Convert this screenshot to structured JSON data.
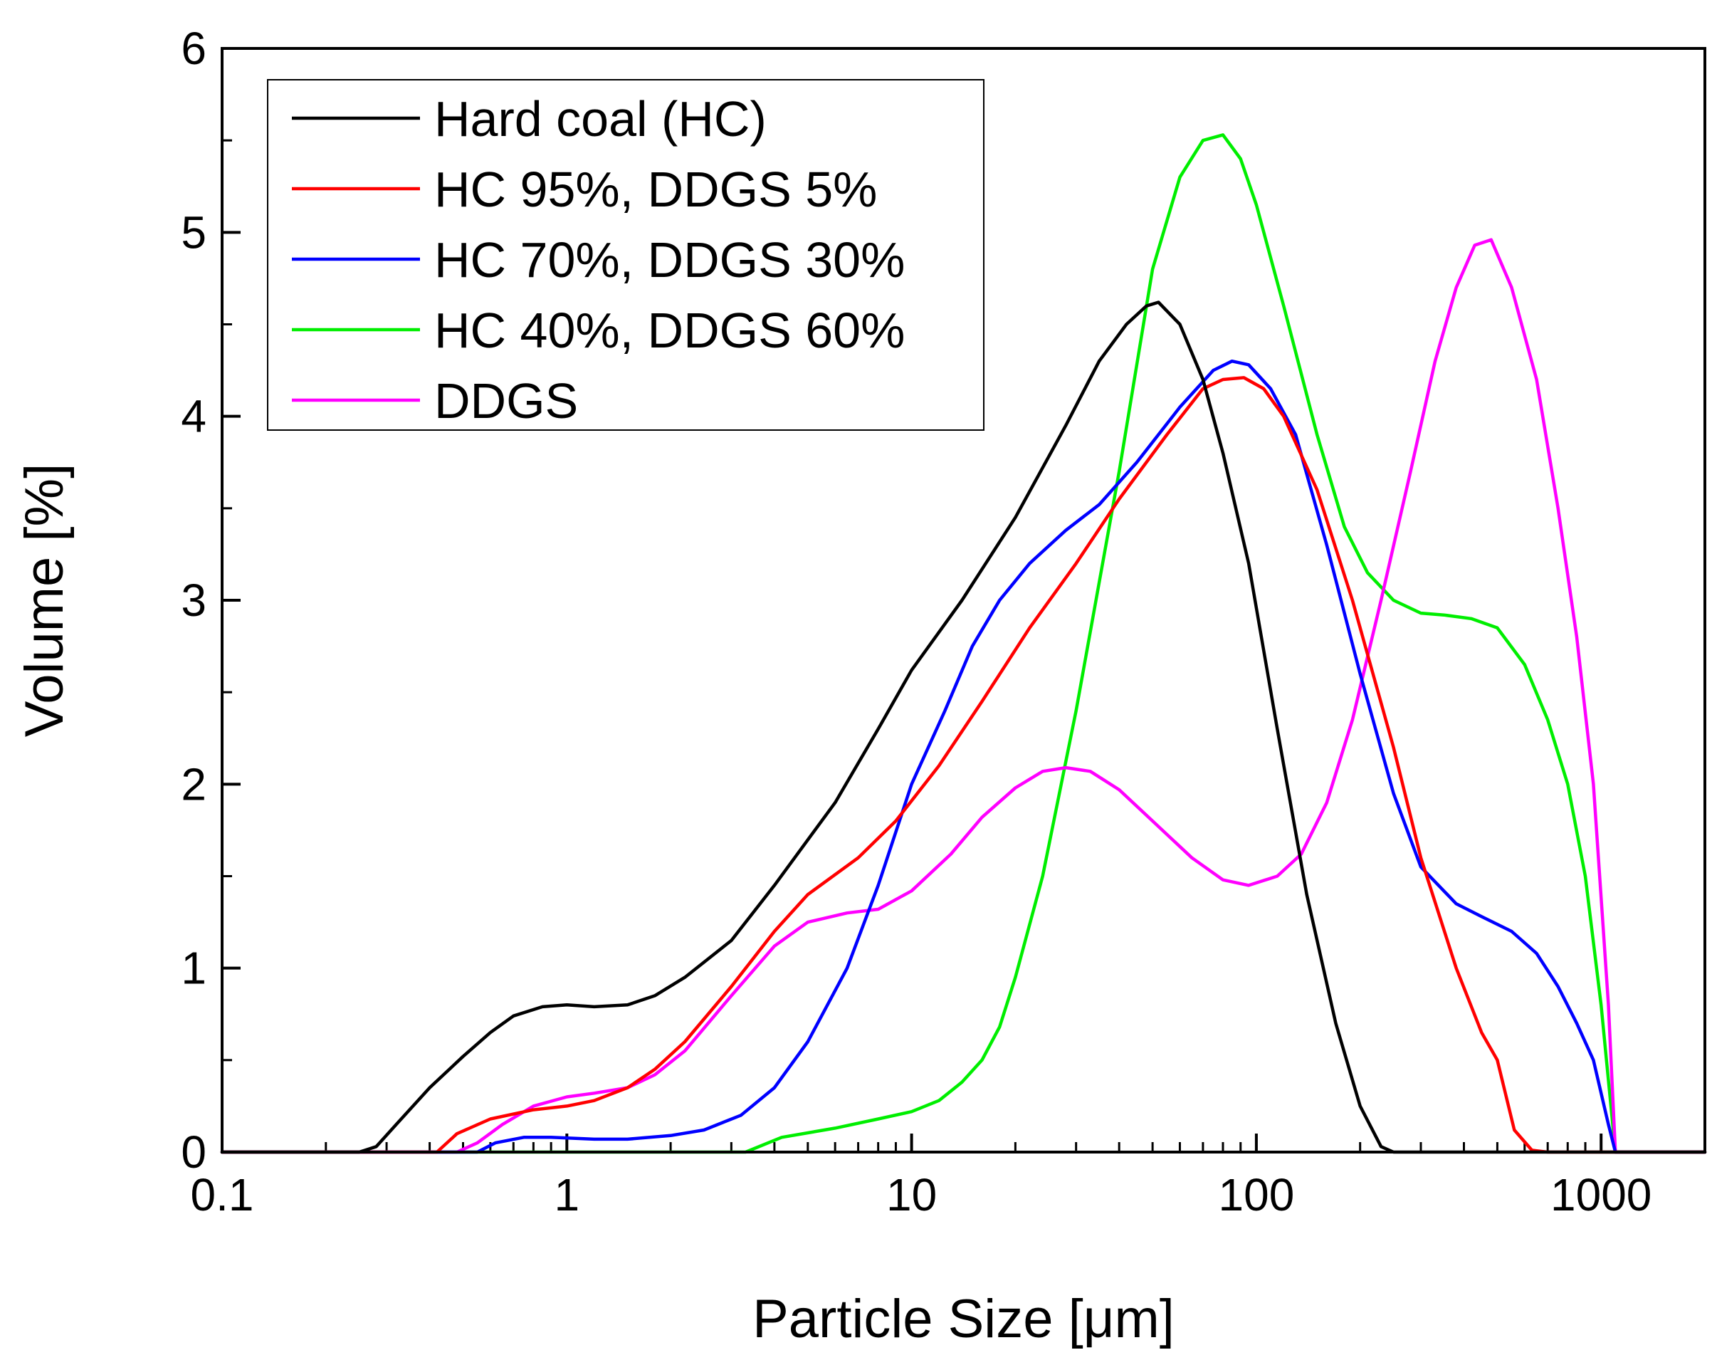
{
  "chart_data": {
    "type": "line",
    "title": "",
    "xlabel": "Particle Size [μm]",
    "ylabel": "Volume [%]",
    "xscale": "log",
    "xlim": [
      0.1,
      2000
    ],
    "ylim": [
      0,
      6
    ],
    "x_ticks": [
      {
        "value": 0.1,
        "label": "0.1"
      },
      {
        "value": 1,
        "label": "1"
      },
      {
        "value": 10,
        "label": "10"
      },
      {
        "value": 100,
        "label": "100"
      },
      {
        "value": 1000,
        "label": "1000"
      }
    ],
    "y_ticks": [
      {
        "value": 0,
        "label": "0"
      },
      {
        "value": 1,
        "label": "1"
      },
      {
        "value": 2,
        "label": "2"
      },
      {
        "value": 3,
        "label": "3"
      },
      {
        "value": 4,
        "label": "4"
      },
      {
        "value": 5,
        "label": "5"
      },
      {
        "value": 6,
        "label": "6"
      }
    ],
    "legend_position": "top-left",
    "series": [
      {
        "name": "Hard coal (HC)",
        "color": "#000000",
        "points": [
          [
            0.1,
            0
          ],
          [
            0.25,
            0
          ],
          [
            0.28,
            0.03
          ],
          [
            0.32,
            0.15
          ],
          [
            0.4,
            0.35
          ],
          [
            0.5,
            0.52
          ],
          [
            0.6,
            0.65
          ],
          [
            0.7,
            0.74
          ],
          [
            0.85,
            0.79
          ],
          [
            1,
            0.8
          ],
          [
            1.2,
            0.79
          ],
          [
            1.5,
            0.8
          ],
          [
            1.8,
            0.85
          ],
          [
            2.2,
            0.95
          ],
          [
            3,
            1.15
          ],
          [
            4,
            1.45
          ],
          [
            6,
            1.9
          ],
          [
            8,
            2.3
          ],
          [
            10,
            2.62
          ],
          [
            14,
            3.0
          ],
          [
            20,
            3.45
          ],
          [
            28,
            3.95
          ],
          [
            35,
            4.3
          ],
          [
            42,
            4.5
          ],
          [
            48,
            4.6
          ],
          [
            52,
            4.62
          ],
          [
            60,
            4.5
          ],
          [
            70,
            4.2
          ],
          [
            80,
            3.8
          ],
          [
            95,
            3.2
          ],
          [
            115,
            2.3
          ],
          [
            140,
            1.4
          ],
          [
            170,
            0.7
          ],
          [
            200,
            0.25
          ],
          [
            230,
            0.03
          ],
          [
            250,
            0
          ],
          [
            2000,
            0
          ]
        ]
      },
      {
        "name": "HC 95%, DDGS 5%",
        "color": "#ff0000",
        "points": [
          [
            0.1,
            0
          ],
          [
            0.42,
            0
          ],
          [
            0.48,
            0.1
          ],
          [
            0.6,
            0.18
          ],
          [
            0.8,
            0.23
          ],
          [
            1,
            0.25
          ],
          [
            1.2,
            0.28
          ],
          [
            1.5,
            0.35
          ],
          [
            1.8,
            0.45
          ],
          [
            2.2,
            0.6
          ],
          [
            3,
            0.9
          ],
          [
            4,
            1.2
          ],
          [
            5,
            1.4
          ],
          [
            7,
            1.6
          ],
          [
            9,
            1.8
          ],
          [
            12,
            2.1
          ],
          [
            16,
            2.45
          ],
          [
            22,
            2.85
          ],
          [
            30,
            3.2
          ],
          [
            40,
            3.55
          ],
          [
            55,
            3.9
          ],
          [
            70,
            4.15
          ],
          [
            80,
            4.2
          ],
          [
            92,
            4.21
          ],
          [
            105,
            4.15
          ],
          [
            120,
            4.0
          ],
          [
            150,
            3.6
          ],
          [
            190,
            3.0
          ],
          [
            250,
            2.2
          ],
          [
            300,
            1.6
          ],
          [
            380,
            1.0
          ],
          [
            450,
            0.65
          ],
          [
            500,
            0.5
          ],
          [
            560,
            0.12
          ],
          [
            630,
            0.01
          ],
          [
            700,
            0
          ],
          [
            2000,
            0
          ]
        ]
      },
      {
        "name": "HC 70%, DDGS 30%",
        "color": "#0000ff",
        "points": [
          [
            0.1,
            0
          ],
          [
            0.55,
            0
          ],
          [
            0.62,
            0.05
          ],
          [
            0.75,
            0.08
          ],
          [
            0.9,
            0.08
          ],
          [
            1.2,
            0.07
          ],
          [
            1.5,
            0.07
          ],
          [
            2,
            0.09
          ],
          [
            2.5,
            0.12
          ],
          [
            3.2,
            0.2
          ],
          [
            4,
            0.35
          ],
          [
            5,
            0.6
          ],
          [
            6.5,
            1.0
          ],
          [
            8,
            1.45
          ],
          [
            10,
            2.0
          ],
          [
            12.5,
            2.4
          ],
          [
            15,
            2.75
          ],
          [
            18,
            3.0
          ],
          [
            22,
            3.2
          ],
          [
            28,
            3.38
          ],
          [
            35,
            3.52
          ],
          [
            45,
            3.75
          ],
          [
            60,
            4.05
          ],
          [
            75,
            4.25
          ],
          [
            85,
            4.3
          ],
          [
            95,
            4.28
          ],
          [
            110,
            4.15
          ],
          [
            130,
            3.9
          ],
          [
            160,
            3.3
          ],
          [
            200,
            2.6
          ],
          [
            250,
            1.95
          ],
          [
            300,
            1.55
          ],
          [
            380,
            1.35
          ],
          [
            450,
            1.28
          ],
          [
            550,
            1.2
          ],
          [
            650,
            1.08
          ],
          [
            750,
            0.9
          ],
          [
            850,
            0.7
          ],
          [
            950,
            0.5
          ],
          [
            1050,
            0.15
          ],
          [
            1100,
            0
          ],
          [
            2000,
            0
          ]
        ]
      },
      {
        "name": "HC 40%, DDGS 60%",
        "color": "#00ee00",
        "points": [
          [
            0.1,
            0
          ],
          [
            3.3,
            0
          ],
          [
            4.2,
            0.08
          ],
          [
            6,
            0.13
          ],
          [
            8,
            0.18
          ],
          [
            10,
            0.22
          ],
          [
            12,
            0.28
          ],
          [
            14,
            0.38
          ],
          [
            16,
            0.5
          ],
          [
            18,
            0.68
          ],
          [
            20,
            0.95
          ],
          [
            24,
            1.5
          ],
          [
            30,
            2.4
          ],
          [
            40,
            3.7
          ],
          [
            50,
            4.8
          ],
          [
            60,
            5.3
          ],
          [
            70,
            5.5
          ],
          [
            80,
            5.53
          ],
          [
            90,
            5.4
          ],
          [
            100,
            5.15
          ],
          [
            120,
            4.6
          ],
          [
            150,
            3.9
          ],
          [
            180,
            3.4
          ],
          [
            210,
            3.15
          ],
          [
            250,
            3.0
          ],
          [
            300,
            2.93
          ],
          [
            350,
            2.92
          ],
          [
            420,
            2.9
          ],
          [
            500,
            2.85
          ],
          [
            600,
            2.65
          ],
          [
            700,
            2.35
          ],
          [
            800,
            2.0
          ],
          [
            900,
            1.5
          ],
          [
            1000,
            0.8
          ],
          [
            1100,
            0
          ],
          [
            2000,
            0
          ]
        ]
      },
      {
        "name": "DDGS",
        "color": "#ff00ff",
        "points": [
          [
            0.1,
            0
          ],
          [
            0.48,
            0
          ],
          [
            0.55,
            0.05
          ],
          [
            0.65,
            0.15
          ],
          [
            0.8,
            0.25
          ],
          [
            1,
            0.3
          ],
          [
            1.2,
            0.32
          ],
          [
            1.5,
            0.35
          ],
          [
            1.8,
            0.42
          ],
          [
            2.2,
            0.55
          ],
          [
            3,
            0.85
          ],
          [
            4,
            1.12
          ],
          [
            5,
            1.25
          ],
          [
            6.5,
            1.3
          ],
          [
            8,
            1.32
          ],
          [
            10,
            1.42
          ],
          [
            13,
            1.62
          ],
          [
            16,
            1.82
          ],
          [
            20,
            1.98
          ],
          [
            24,
            2.07
          ],
          [
            28,
            2.09
          ],
          [
            33,
            2.07
          ],
          [
            40,
            1.97
          ],
          [
            50,
            1.8
          ],
          [
            65,
            1.6
          ],
          [
            80,
            1.48
          ],
          [
            95,
            1.45
          ],
          [
            115,
            1.5
          ],
          [
            135,
            1.62
          ],
          [
            160,
            1.9
          ],
          [
            190,
            2.35
          ],
          [
            230,
            3.0
          ],
          [
            280,
            3.7
          ],
          [
            330,
            4.3
          ],
          [
            380,
            4.7
          ],
          [
            430,
            4.93
          ],
          [
            480,
            4.96
          ],
          [
            550,
            4.7
          ],
          [
            650,
            4.2
          ],
          [
            750,
            3.5
          ],
          [
            850,
            2.8
          ],
          [
            950,
            2.0
          ],
          [
            1050,
            0.8
          ],
          [
            1100,
            0
          ],
          [
            2000,
            0
          ]
        ]
      }
    ]
  }
}
